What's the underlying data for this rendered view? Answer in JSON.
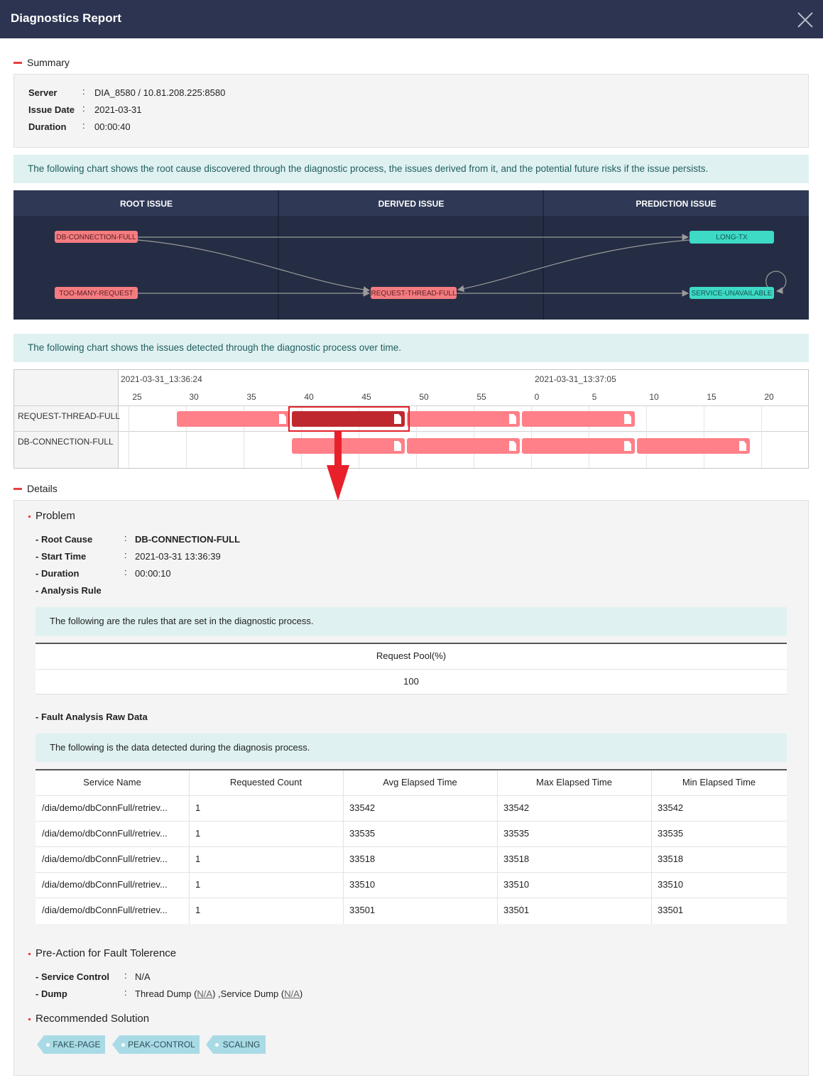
{
  "header": {
    "title": "Diagnostics Report"
  },
  "summary": {
    "title": "Summary",
    "separator": ":",
    "fields": [
      {
        "label": "Server",
        "value": "DIA_8580 / 10.81.208.225:8580"
      },
      {
        "label": "Issue Date",
        "value": "2021-03-31"
      },
      {
        "label": "Duration",
        "value": "00:00:40"
      }
    ]
  },
  "flow": {
    "note": "The following chart shows the root cause discovered through the diagnostic process, the issues derived from it, and the potential future risks if the issue persists.",
    "columns": [
      "ROOT ISSUE",
      "DERIVED ISSUE",
      "PREDICTION ISSUE"
    ],
    "nodes": [
      "DB-CONNECTION-FULL",
      "TOO-MANY-REQUEST",
      "REQUEST-THREAD-FULL",
      "LONG-TX",
      "SERVICE-UNAVAILABLE"
    ]
  },
  "timeline": {
    "note": "The following chart shows the issues detected through the diagnostic process over time.",
    "time_labels": [
      "2021-03-31_13:36:24",
      "2021-03-31_13:37:05"
    ],
    "ticks": [
      25,
      30,
      35,
      40,
      45,
      50,
      55,
      0,
      5,
      10,
      15,
      20
    ],
    "rows": [
      "REQUEST-THREAD-FULL",
      "DB-CONNECTION-FULL"
    ]
  },
  "details": {
    "title": "Details",
    "problem": {
      "title": "Problem",
      "fields": [
        {
          "label": "- Root Cause",
          "value": "DB-CONNECTION-FULL"
        },
        {
          "label": "- Start Time",
          "value": "2021-03-31 13:36:39"
        },
        {
          "label": "- Duration",
          "value": "00:00:10"
        },
        {
          "label": "- Analysis Rule"
        }
      ],
      "rule_note": "The following are the rules that are set in the diagnostic process.",
      "rule_table": {
        "headers": [
          "Request Pool(%)"
        ],
        "rows": [
          [
            100
          ]
        ]
      },
      "raw_title": "- Fault Analysis Raw Data",
      "raw_note": "The following is the data detected during the diagnosis process.",
      "raw_table": {
        "headers": [
          "Service Name",
          "Requested Count",
          "Avg Elapsed Time",
          "Max Elapsed Time",
          "Min Elapsed Time"
        ],
        "rows": [
          [
            "/dia/demo/dbConnFull/retriev...",
            1,
            33542,
            33542,
            33542
          ],
          [
            "/dia/demo/dbConnFull/retriev...",
            1,
            33535,
            33535,
            33535
          ],
          [
            "/dia/demo/dbConnFull/retriev...",
            1,
            33518,
            33518,
            33518
          ],
          [
            "/dia/demo/dbConnFull/retriev...",
            1,
            33510,
            33510,
            33510
          ],
          [
            "/dia/demo/dbConnFull/retriev...",
            1,
            33501,
            33501,
            33501
          ]
        ]
      }
    },
    "pre_action": {
      "title": "Pre-Action for Fault Tolerence",
      "fields": [
        {
          "label": "- Service Control",
          "value": "N/A"
        },
        {
          "label": "- Dump",
          "value_parts": [
            "Thread Dump (",
            "N/A",
            ") ,Service Dump (",
            "N/A",
            ")"
          ]
        }
      ]
    },
    "solution": {
      "title": "Recommended Solution",
      "tags": [
        "FAKE-PAGE",
        "PEAK-CONTROL",
        "SCALING"
      ]
    }
  }
}
